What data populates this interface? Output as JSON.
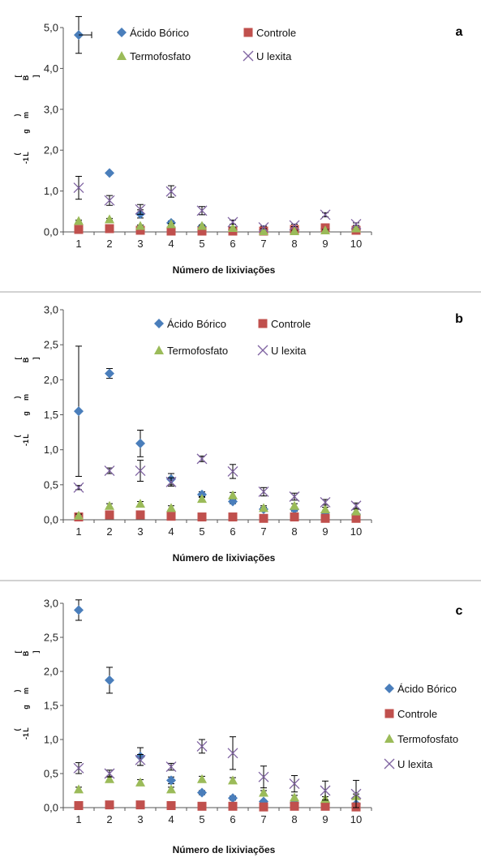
{
  "series_styles": [
    {
      "key": "acido",
      "name": "Ácido Bórico",
      "marker": "diamond",
      "color": "#4a7ebb"
    },
    {
      "key": "controle",
      "name": "Controle",
      "marker": "square",
      "color": "#c0504d"
    },
    {
      "key": "termo",
      "name": "Termofosfato",
      "marker": "triangle",
      "color": "#9bbb59"
    },
    {
      "key": "ulexita",
      "name": "U lexita",
      "marker": "x",
      "color": "#8064a2"
    }
  ],
  "chart_data": [
    {
      "type": "scatter",
      "panel_label": "a",
      "xlabel": "Número de lixiviações",
      "ylabel_chars": [
        "[",
        "B",
        "]",
        "(",
        "m",
        "g",
        "L",
        "-1",
        ")"
      ],
      "x": [
        1,
        2,
        3,
        4,
        5,
        6,
        7,
        8,
        9,
        10
      ],
      "ylim": [
        0,
        5
      ],
      "yticks": [
        "0,0",
        "1,0",
        "2,0",
        "3,0",
        "4,0",
        "5,0"
      ],
      "ytick_values": [
        0,
        1,
        2,
        3,
        4,
        5
      ],
      "legend_position": "top-two-columns",
      "series": [
        {
          "name": "Ácido Bórico",
          "values": [
            4.82,
            1.44,
            0.44,
            0.22,
            0.13,
            0.05,
            0.05,
            0.05,
            0.08,
            0.05
          ],
          "errors": [
            0.45,
            0.0,
            0.1,
            0.05,
            0.03,
            0.02,
            0.02,
            0.02,
            0.02,
            0.02
          ]
        },
        {
          "name": "Controle",
          "values": [
            0.06,
            0.08,
            0.04,
            0.02,
            0.02,
            0.02,
            0.02,
            0.06,
            0.1,
            0.04
          ],
          "errors": [
            0.0,
            0.0,
            0.0,
            0.0,
            0.0,
            0.0,
            0.0,
            0.0,
            0.0,
            0.0
          ]
        },
        {
          "name": "Termofosfato",
          "values": [
            0.27,
            0.31,
            0.15,
            0.19,
            0.15,
            0.1,
            0.02,
            0.02,
            0.04,
            0.09
          ],
          "errors": [
            0.02,
            0.02,
            0.02,
            0.02,
            0.02,
            0.02,
            0.02,
            0.02,
            0.02,
            0.02
          ]
        },
        {
          "name": "U lexita",
          "values": [
            1.08,
            0.77,
            0.55,
            0.99,
            0.52,
            0.24,
            0.11,
            0.16,
            0.42,
            0.19
          ],
          "errors": [
            0.28,
            0.12,
            0.12,
            0.14,
            0.1,
            0.05,
            0.03,
            0.03,
            0.05,
            0.03
          ]
        }
      ]
    },
    {
      "type": "scatter",
      "panel_label": "b",
      "xlabel": "Número de lixiviações",
      "ylabel_chars": [
        "[",
        "B",
        "]",
        "(",
        "m",
        "g",
        "L",
        "-1",
        ")"
      ],
      "x": [
        1,
        2,
        3,
        4,
        5,
        6,
        7,
        8,
        9,
        10
      ],
      "ylim": [
        0,
        3
      ],
      "yticks": [
        "0,0",
        "0,5",
        "1,0",
        "1,5",
        "2,0",
        "2,5",
        "3,0"
      ],
      "ytick_values": [
        0,
        0.5,
        1,
        1.5,
        2,
        2.5,
        3
      ],
      "legend_position": "top-two-columns",
      "series": [
        {
          "name": "Ácido Bórico",
          "values": [
            1.55,
            2.09,
            1.09,
            0.58,
            0.36,
            0.26,
            0.15,
            0.15,
            0.1,
            0.08
          ],
          "errors": [
            0.93,
            0.07,
            0.19,
            0.08,
            0.04,
            0.03,
            0.03,
            0.03,
            0.02,
            0.02
          ]
        },
        {
          "name": "Controle",
          "values": [
            0.04,
            0.07,
            0.07,
            0.05,
            0.04,
            0.04,
            0.02,
            0.04,
            0.02,
            0.02
          ],
          "errors": [
            0.0,
            0.0,
            0.0,
            0.0,
            0.0,
            0.0,
            0.0,
            0.0,
            0.0,
            0.0
          ]
        },
        {
          "name": "Termofosfato",
          "values": [
            0.06,
            0.2,
            0.23,
            0.17,
            0.3,
            0.35,
            0.17,
            0.2,
            0.15,
            0.12
          ],
          "errors": [
            0.02,
            0.03,
            0.03,
            0.03,
            0.03,
            0.04,
            0.03,
            0.03,
            0.03,
            0.03
          ]
        },
        {
          "name": "U lexita",
          "values": [
            0.46,
            0.7,
            0.7,
            0.54,
            0.87,
            0.69,
            0.4,
            0.33,
            0.25,
            0.2
          ],
          "errors": [
            0.03,
            0.04,
            0.15,
            0.06,
            0.04,
            0.1,
            0.06,
            0.05,
            0.04,
            0.04
          ]
        }
      ]
    },
    {
      "type": "scatter",
      "panel_label": "c",
      "xlabel": "Número de lixiviações",
      "ylabel_chars": [
        "[",
        "B",
        "]",
        "(",
        "m",
        "g",
        "L",
        "-1",
        ")"
      ],
      "x": [
        1,
        2,
        3,
        4,
        5,
        6,
        7,
        8,
        9,
        10
      ],
      "ylim": [
        0,
        3
      ],
      "yticks": [
        "0,0",
        "0,5",
        "1,0",
        "1,5",
        "2,0",
        "2,5",
        "3,0"
      ],
      "ytick_values": [
        0,
        0.5,
        1,
        1.5,
        2,
        2.5,
        3
      ],
      "legend_position": "right",
      "series": [
        {
          "name": "Ácido Bórico",
          "values": [
            2.9,
            1.87,
            0.75,
            0.4,
            0.22,
            0.14,
            0.09,
            0.07,
            0.06,
            0.05
          ],
          "errors": [
            0.15,
            0.19,
            0.13,
            0.05,
            0.03,
            0.03,
            0.02,
            0.02,
            0.02,
            0.02
          ]
        },
        {
          "name": "Controle",
          "values": [
            0.03,
            0.04,
            0.04,
            0.03,
            0.02,
            0.02,
            0.01,
            0.02,
            0.02,
            0.01
          ],
          "errors": [
            0.0,
            0.0,
            0.0,
            0.0,
            0.0,
            0.0,
            0.0,
            0.0,
            0.0,
            0.0
          ]
        },
        {
          "name": "Termofosfato",
          "values": [
            0.27,
            0.42,
            0.37,
            0.27,
            0.42,
            0.4,
            0.22,
            0.15,
            0.13,
            0.17
          ],
          "errors": [
            0.03,
            0.04,
            0.04,
            0.03,
            0.04,
            0.04,
            0.03,
            0.03,
            0.03,
            0.03
          ]
        },
        {
          "name": "U lexita",
          "values": [
            0.58,
            0.5,
            0.7,
            0.6,
            0.9,
            0.8,
            0.45,
            0.35,
            0.25,
            0.2
          ],
          "errors": [
            0.08,
            0.05,
            0.08,
            0.05,
            0.1,
            0.24,
            0.16,
            0.12,
            0.14,
            0.2
          ]
        }
      ]
    }
  ]
}
